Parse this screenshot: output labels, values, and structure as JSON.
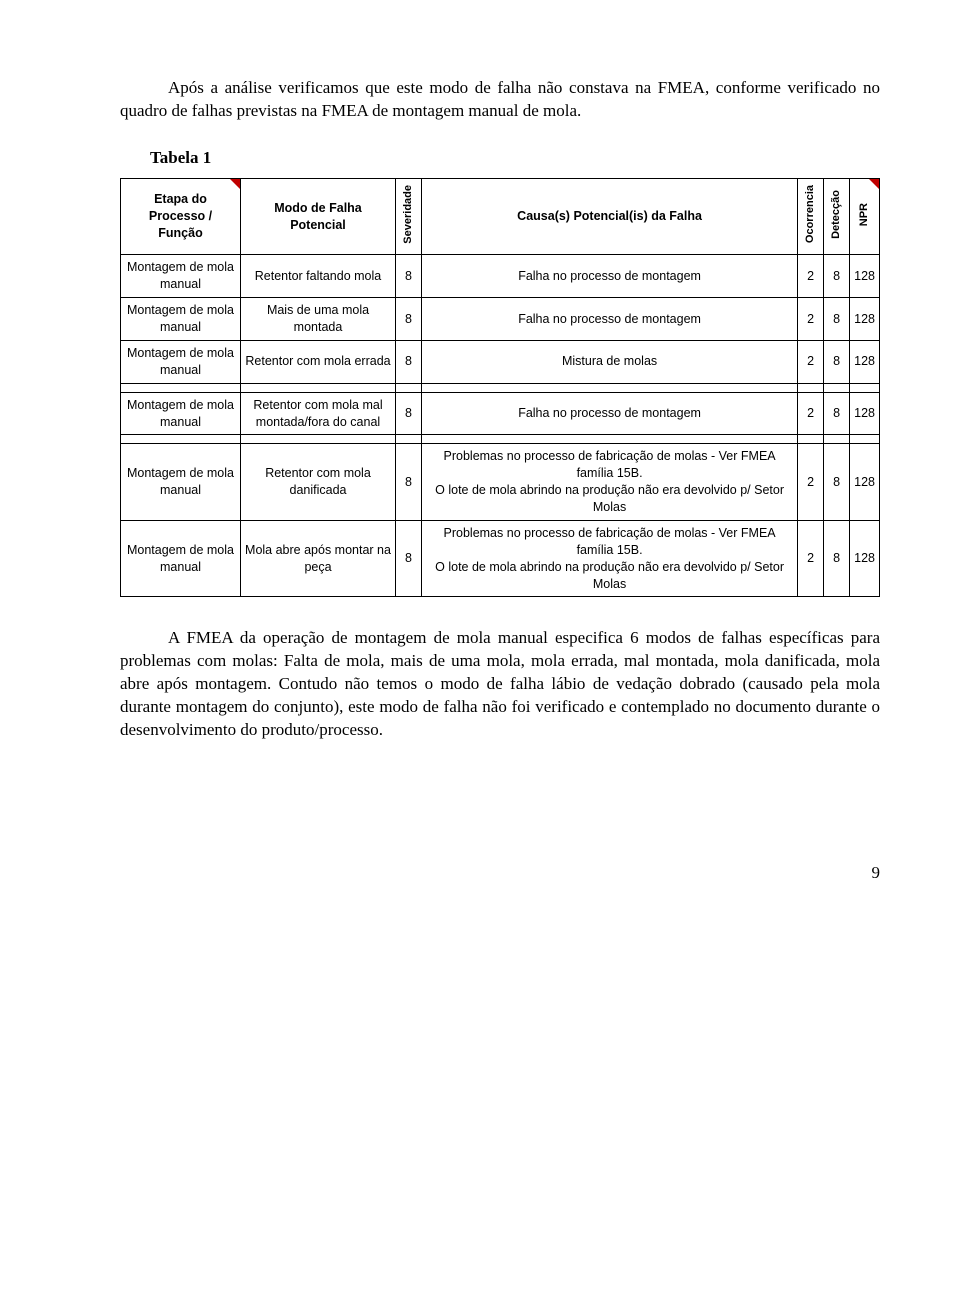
{
  "intro": "Após a análise verificamos que este modo de falha não constava na FMEA, conforme verificado no quadro de falhas previstas na FMEA de montagem manual de mola.",
  "tabela_label": "Tabela 1",
  "headers": {
    "etapa": "Etapa do Processo / Função",
    "modo": "Modo de Falha Potencial",
    "sev": "Severidade",
    "causa": "Causa(s) Potencial(is) da Falha",
    "oco": "Ocorrencia",
    "det": "Detecção",
    "npr": "NPR"
  },
  "rows": [
    {
      "etapa": "Montagem de mola manual",
      "modo": "Retentor faltando mola",
      "sev": "8",
      "causa": "Falha no processo de montagem",
      "oco": "2",
      "det": "8",
      "npr": "128"
    },
    {
      "etapa": "Montagem de mola manual",
      "modo": "Mais de uma mola montada",
      "sev": "8",
      "causa": "Falha no processo de montagem",
      "oco": "2",
      "det": "8",
      "npr": "128"
    },
    {
      "etapa": "Montagem de mola manual",
      "modo": "Retentor com mola errada",
      "sev": "8",
      "causa": "Mistura de molas",
      "oco": "2",
      "det": "8",
      "npr": "128"
    },
    {
      "etapa": "Montagem de mola manual",
      "modo": "Retentor com mola mal montada/fora do canal",
      "sev": "8",
      "causa": "Falha no processo de montagem",
      "oco": "2",
      "det": "8",
      "npr": "128"
    },
    {
      "etapa": "Montagem de mola manual",
      "modo": "Retentor com mola danificada",
      "sev": "8",
      "causa": "Problemas no processo de fabricação de molas - Ver FMEA família 15B.\nO lote de mola abrindo na produção não era devolvido p/ Setor Molas",
      "oco": "2",
      "det": "8",
      "npr": "128"
    },
    {
      "etapa": "Montagem de mola manual",
      "modo": "Mola abre após montar na peça",
      "sev": "8",
      "causa": "Problemas no processo de fabricação de molas - Ver FMEA família 15B.\nO lote de mola abrindo na produção não era devolvido p/ Setor Molas",
      "oco": "2",
      "det": "8",
      "npr": "128"
    }
  ],
  "body_text": "A FMEA da operação de montagem de mola manual especifica 6 modos de falhas específicas para problemas com molas: Falta de mola, mais de uma mola, mola errada, mal montada, mola danificada, mola abre após montagem. Contudo não temos o modo de falha lábio de vedação dobrado (causado pela mola durante montagem do conjunto), este modo de falha não foi verificado e contemplado no documento durante o desenvolvimento do produto/processo.",
  "page_number": "9",
  "colors": {
    "triangle": "#c00000",
    "border": "#000000",
    "background": "#ffffff"
  },
  "typography": {
    "body_font": "Times New Roman",
    "table_font": "Arial",
    "body_size_pt": 12,
    "table_size_pt": 9
  }
}
